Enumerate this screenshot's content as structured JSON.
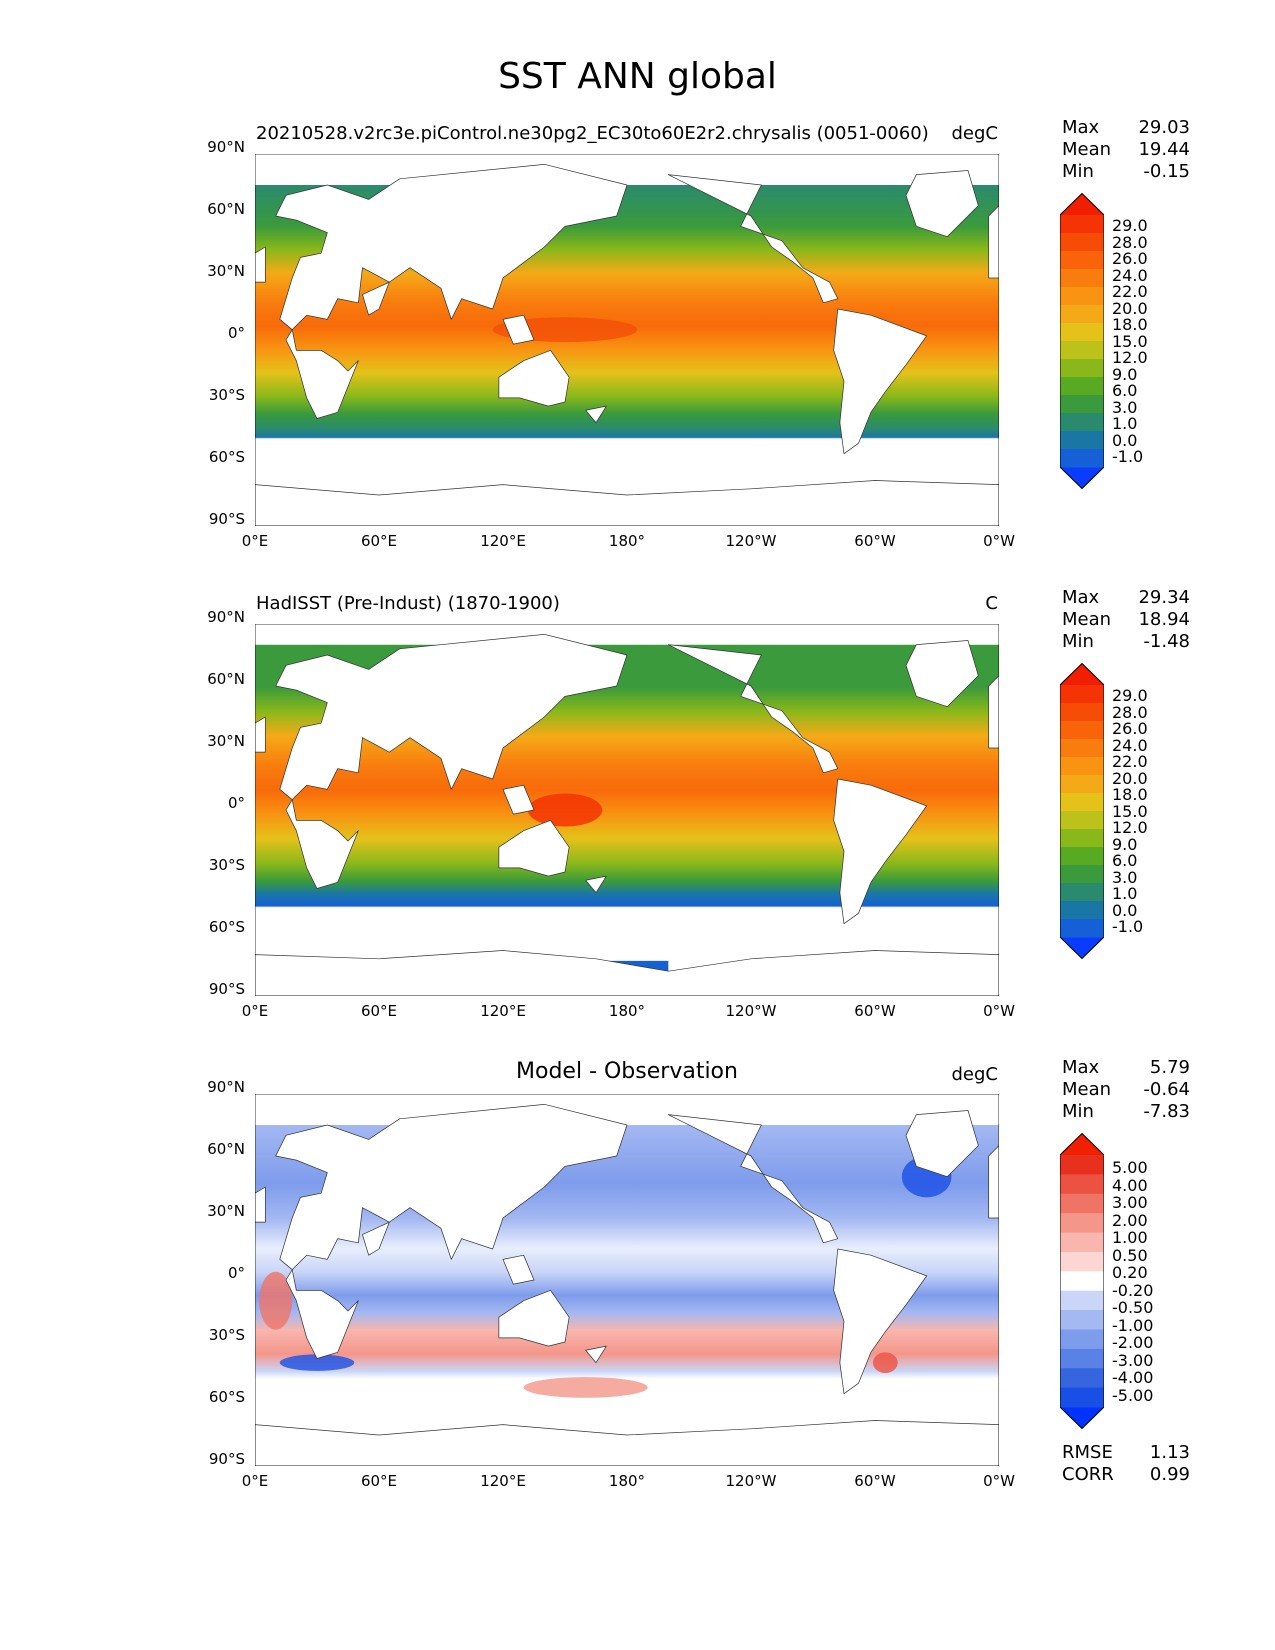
{
  "figure_title": "SST ANN global",
  "lat_labels": [
    "90°N",
    "60°N",
    "30°N",
    "0°",
    "30°S",
    "60°S",
    "90°S"
  ],
  "lon_labels": [
    "0°E",
    "60°E",
    "120°E",
    "180°",
    "120°W",
    "60°W",
    "0°W"
  ],
  "stat_labels": {
    "max": "Max",
    "mean": "Mean",
    "min": "Min",
    "rmse": "RMSE",
    "corr": "CORR"
  },
  "panels": [
    {
      "title": "20210528.v2rc3e.piControl.ne30pg2_EC30to60E2r2.chrysalis (0051-0060)",
      "units": "degC",
      "stats": {
        "max": "29.03",
        "mean": "19.44",
        "min": "-0.15"
      },
      "cbar_labels": [
        "29.0",
        "28.0",
        "26.0",
        "24.0",
        "22.0",
        "20.0",
        "18.0",
        "15.0",
        "12.0",
        "9.0",
        "6.0",
        "3.0",
        "1.0",
        "0.0",
        "-1.0"
      ]
    },
    {
      "title": "HadISST (Pre-Indust) (1870-1900)",
      "units": "C",
      "stats": {
        "max": "29.34",
        "mean": "18.94",
        "min": "-1.48"
      },
      "cbar_labels": [
        "29.0",
        "28.0",
        "26.0",
        "24.0",
        "22.0",
        "20.0",
        "18.0",
        "15.0",
        "12.0",
        "9.0",
        "6.0",
        "3.0",
        "1.0",
        "0.0",
        "-1.0"
      ]
    },
    {
      "title": "Model - Observation",
      "units": "degC",
      "stats": {
        "max": "5.79",
        "mean": "-0.64",
        "min": "-7.83",
        "rmse": "1.13",
        "corr": "0.99"
      },
      "cbar_labels": [
        "5.00",
        "4.00",
        "3.00",
        "2.00",
        "1.00",
        "0.50",
        "0.20",
        "-0.20",
        "-0.50",
        "-1.00",
        "-2.00",
        "-3.00",
        "-4.00",
        "-5.00"
      ]
    }
  ],
  "colors": {
    "sst_scale": [
      "#0a3cff",
      "#1560d6",
      "#1a76a5",
      "#2a8a6e",
      "#3a9a3c",
      "#58aa22",
      "#8ab81a",
      "#bcc21a",
      "#e4c21a",
      "#f4aa18",
      "#f89412",
      "#f97c0e",
      "#f9640a",
      "#f74c06",
      "#f43404",
      "#f21e02"
    ],
    "diff_scale": [
      "#0033ff",
      "#1a4fe6",
      "#3566e0",
      "#5a82e6",
      "#7e9cec",
      "#a4b8f2",
      "#cad6f8",
      "#ffffff",
      "#fbd6d2",
      "#f8b6ae",
      "#f4968a",
      "#f07466",
      "#ec5242",
      "#e8301e",
      "#f02000"
    ]
  }
}
